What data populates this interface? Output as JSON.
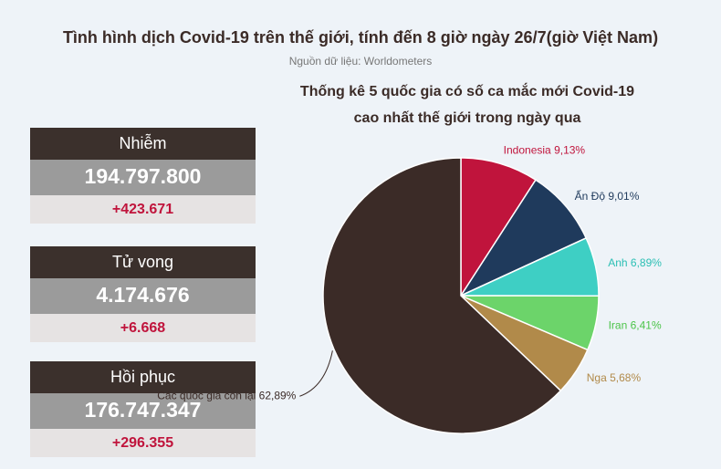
{
  "header": {
    "title": "Tình hình dịch Covid-19 trên thế giới, tính đến 8 giờ ngày 26/7(giờ Việt Nam)",
    "source": "Nguồn dữ liệu: Worldometers"
  },
  "stats": [
    {
      "label": "Nhiễm",
      "total": "194.797.800",
      "change": "+423.671"
    },
    {
      "label": "Tử vong",
      "total": "4.174.676",
      "change": "+6.668"
    },
    {
      "label": "Hồi phục",
      "total": "176.747.347",
      "change": "+296.355"
    }
  ],
  "chart_data": {
    "type": "pie",
    "title": [
      "Thống kê 5 quốc gia có số ca mắc  mới Covid-19",
      "cao nhất thế giới trong ngày qua"
    ],
    "categories": [
      "Indonesia",
      "Ấn Độ",
      "Anh",
      "Iran",
      "Nga",
      "Các quốc gia còn lại"
    ],
    "values": [
      9.13,
      9.01,
      6.89,
      6.41,
      5.68,
      62.89
    ],
    "value_labels": [
      "9,13%",
      "9,01%",
      "6,89%",
      "6,41%",
      "5,68%",
      "62,89%"
    ],
    "colors": [
      "#c0143c",
      "#1f3a5c",
      "#3ecfc4",
      "#6cd46a",
      "#b18a4a",
      "#3b2b27"
    ],
    "label_colors": [
      "#c0143c",
      "#1f3a5c",
      "#2bbfb4",
      "#4cc44a",
      "#b18a4a",
      "#3b2b27"
    ]
  }
}
